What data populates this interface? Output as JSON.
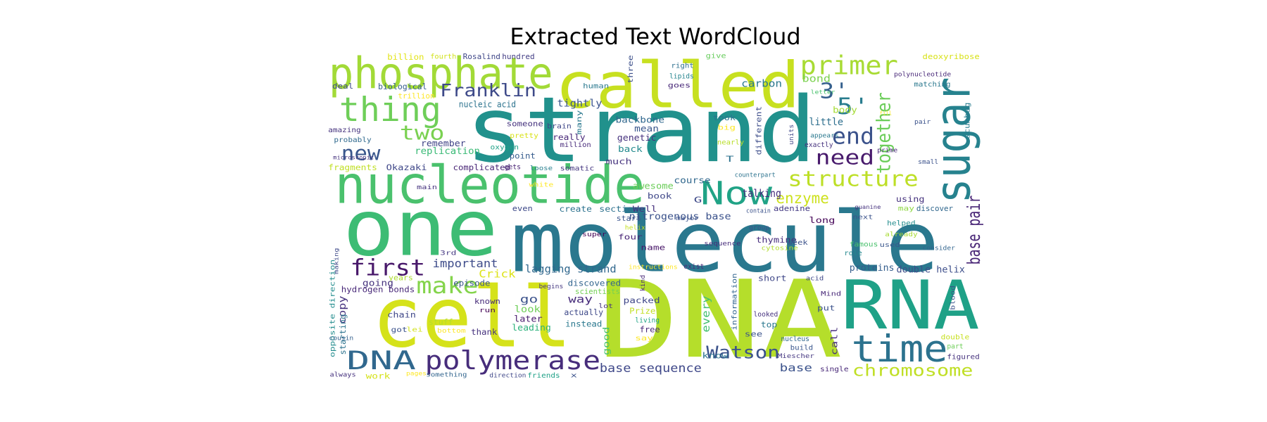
{
  "chart_data": {
    "type": "wordcloud",
    "title": "Extracted Text WordCloud",
    "words": [
      "strand",
      "molecule",
      "DNA",
      "one",
      "cell",
      "called",
      "nucleotide",
      "phosphate",
      "sugar",
      "RNA",
      "thing",
      "time",
      "Now",
      "DNA",
      "polymerase",
      "primer",
      "3'",
      "5'",
      "end",
      "need",
      "together",
      "structure",
      "base pair",
      "two",
      "new",
      "Franklin",
      "first",
      "make",
      "enzyme",
      "Watson",
      "chromosome",
      "base sequence",
      "important",
      "lagging strand",
      "double helix",
      "proteins",
      "talking",
      "nitrogenous base",
      "tightly",
      "carbon",
      "bond",
      "body",
      "little",
      "nucleic acid",
      "biological",
      "billion",
      "hundred",
      "Rosalind",
      "fourth",
      "deal",
      "trillion",
      "amazing",
      "probably",
      "remember",
      "replication",
      "fragments",
      "Okazaki",
      "complicated",
      "gets",
      "loose",
      "somatic",
      "someone",
      "brain",
      "really",
      "pretty",
      "oxygen",
      "point",
      "million",
      "many",
      "backbone",
      "mean",
      "genetic",
      "back",
      "much",
      "human",
      "lipids",
      "goes",
      "right",
      "three",
      "give",
      "big",
      "took",
      "nearly",
      "different",
      "T",
      "G",
      "course",
      "awesome",
      "book",
      "create",
      "section",
      "Well",
      "even",
      "main",
      "white",
      "start",
      "helix",
      "four",
      "super",
      "name",
      "sequence",
      "major",
      "contain",
      "adenine",
      "discover",
      "may",
      "guanine",
      "next",
      "using",
      "long",
      "thymine",
      "week",
      "cytosine",
      "famous",
      "already",
      "helped",
      "used",
      "consider",
      "role",
      "instructions",
      "exist",
      "years",
      "3rd",
      "episode",
      "going",
      "Crick",
      "opposite direction",
      "making",
      "hydrogen bonds",
      "go",
      "way",
      "look",
      "discovered",
      "scientists",
      "begins",
      "actually",
      "kind",
      "lot",
      "later",
      "leading",
      "instead",
      "good",
      "every",
      "Prize",
      "living",
      "free",
      "packed",
      "known",
      "run",
      "copy",
      "starting",
      "chain",
      "stuff",
      "got",
      "lei",
      "bottom",
      "cousin",
      "thank",
      "short",
      "information",
      "looked",
      "top",
      "see",
      "know",
      "say",
      "acid",
      "Mind",
      "put",
      "call",
      "nucleus",
      "build",
      "Miescher",
      "base",
      "single",
      "double",
      "part",
      "figured",
      "blood",
      "work",
      "always",
      "pages",
      "something",
      "direction",
      "friends",
      "x",
      "microscopic",
      "deoxyribose",
      "polynucleotide",
      "matching",
      "letter",
      "scumbag",
      "pair",
      "fill",
      "units",
      "appears",
      "exactly",
      "prime",
      "small",
      "counterpart",
      "group"
    ],
    "colors": [
      "#21918c",
      "#2a788e",
      "#b5de2b",
      "#3dbc74",
      "#d5e21a",
      "#c7e020",
      "#4ac16d",
      "#a2da37",
      "#26828e",
      "#1fa187",
      "#6ece58",
      "#2c728e",
      "#20a386",
      "#31688e",
      "#472d7b",
      "#a8db34",
      "#35608d",
      "#287c8e",
      "#3b528b",
      "#481a6c",
      "#6ccd5a",
      "#bddf26",
      "#482576",
      "#7ad151",
      "#39568c",
      "#3e4a89",
      "#48186a",
      "#84d44b",
      "#cde11d",
      "#3b528b",
      "#c0df25",
      "#3f4889",
      "#3e4c8a",
      "#31688e",
      "#3d4e8a",
      "#355e8d",
      "#472f7d",
      "#3b528b",
      "#3a548c",
      "#2a778e",
      "#7cd250",
      "#a5db36",
      "#2e6f8e",
      "#2c738e",
      "#355e8d",
      "#e2e418",
      "#433e85",
      "#3f4788",
      "#d2e21b",
      "#3e4989",
      "#fde725",
      "#46337e",
      "#306a8e",
      "#414487",
      "#3aba76",
      "#c0df25",
      "#3f4788",
      "#482475",
      "#482173",
      "#277f8e",
      "#453781",
      "#46337e",
      "#3f4788",
      "#482878",
      "#d8e219",
      "#1fa187",
      "#365c8d",
      "#472a7a",
      "#2a788e",
      "#31688e",
      "#39568c",
      "#46327e",
      "#238a8d",
      "#46337e",
      "#2a788e",
      "#25848e",
      "#482878",
      "#2d708e",
      "#3c4f8a",
      "#67cc5c",
      "#fde725",
      "#2c738e",
      "#b8de29",
      "#3d4d8a",
      "#2c728e",
      "#3e4a89",
      "#31688e",
      "#6ccd5a",
      "#3f4788",
      "#2c728e",
      "#2d718e",
      "#46327e",
      "#3e4989",
      "#46337e",
      "#fde725",
      "#3a548c",
      "#c5e021",
      "#482475",
      "#440154",
      "#481668",
      "#472d7b",
      "#3b528b",
      "#3b528b",
      "#443a83",
      "#31688e",
      "#8fd744",
      "#46327e",
      "#3b528b",
      "#46327e",
      "#450457",
      "#472f7d",
      "#3b528b",
      "#b2dd2d",
      "#4ac16d",
      "#a8db34",
      "#228c8d",
      "#39568c",
      "#32658e",
      "#23888e",
      "#fde725",
      "#472c7a",
      "#addc30",
      "#453882",
      "#39568c",
      "#46337e",
      "#dde318",
      "#228c8d",
      "#3e4989",
      "#482878",
      "#3b528b",
      "#472d7b",
      "#6ece58",
      "#32648e",
      "#74d055",
      "#453781",
      "#3e4989",
      "#482878",
      "#46327e",
      "#481b6d",
      "#2db27d",
      "#2a788e",
      "#4ac16d",
      "#44bf70",
      "#c2df23",
      "#20a486",
      "#482878",
      "#3f4788",
      "#472c7a",
      "#440154",
      "#46327e",
      "#2c738e",
      "#3f4788",
      "#b5de2b",
      "#3b528b",
      "#d2e21b",
      "#fde725",
      "#35608d",
      "#46327e",
      "#3f4788",
      "#32658e",
      "#46327e",
      "#2a788e",
      "#3b528b",
      "#2c728e",
      "#fde725",
      "#3f4788",
      "#482878",
      "#3b528b",
      "#472f7d",
      "#31688e",
      "#39568c",
      "#453781",
      "#3b528b",
      "#482878",
      "#c7e020",
      "#6ece58",
      "#46327e",
      "#3b528b",
      "#d5e21a",
      "#46327e",
      "#fde725",
      "#32658e",
      "#3f4788",
      "#1fa187",
      "#3b528b",
      "#46337e",
      "#d8e219",
      "#482878",
      "#2a788e",
      "#4ac16d",
      "#287c8e",
      "#3b528b",
      "#fde725",
      "#3f4788",
      "#2a788e",
      "#46327e",
      "#482878",
      "#3b528b",
      "#2c738e",
      "#3b528b"
    ]
  }
}
